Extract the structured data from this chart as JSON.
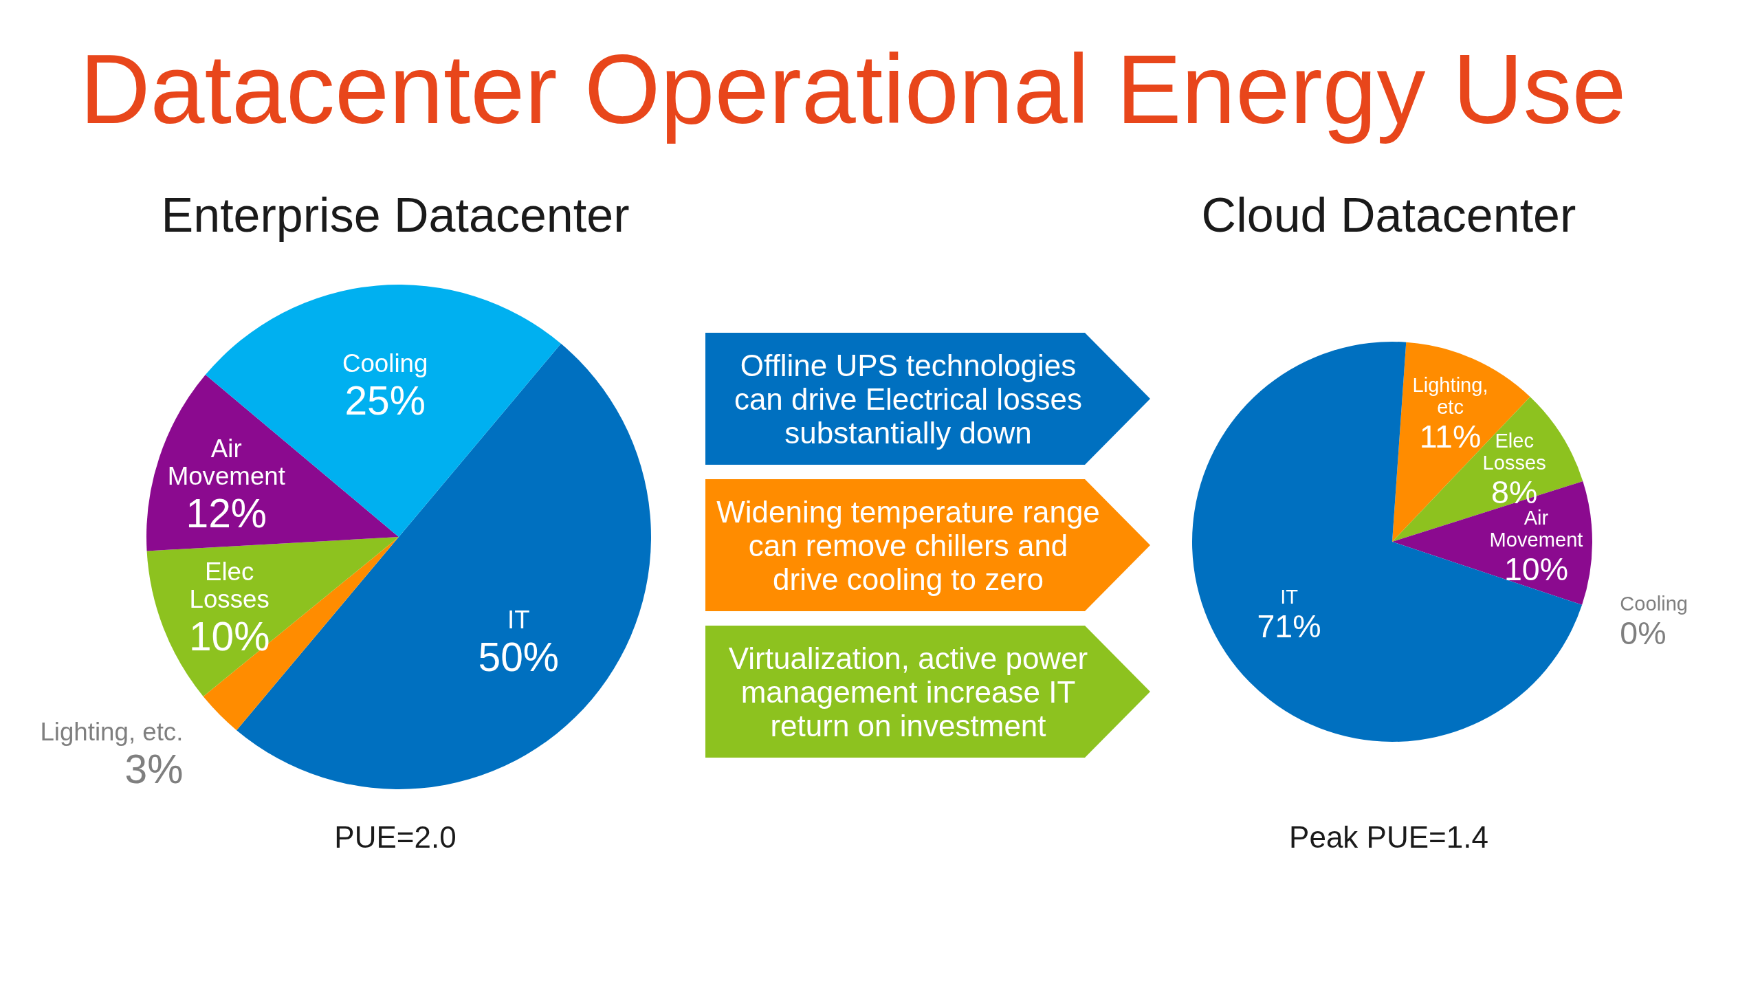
{
  "chart_data": [
    {
      "type": "other",
      "title": "Datacenter Operational Energy Use"
    },
    {
      "type": "pie",
      "title": "Enterprise Datacenter",
      "categories": [
        "IT",
        "Lighting, etc.",
        "Elec Losses",
        "Air Movement",
        "Cooling"
      ],
      "values": [
        50,
        3,
        10,
        12,
        25
      ],
      "value_labels": [
        "50%",
        "3%",
        "10%",
        "12%",
        "25%"
      ],
      "colors": [
        "#0070c0",
        "#ff8c00",
        "#8dc21f",
        "#8b0a8f",
        "#00b0f0"
      ],
      "annotations": [
        "PUE=2.0"
      ]
    },
    {
      "type": "other",
      "annotations": [
        "Offline UPS technologies can drive Electrical losses substantially down",
        "Widening temperature range can remove chillers and drive cooling to zero",
        "Virtualization, active power management increase IT return on investment"
      ]
    },
    {
      "type": "pie",
      "title": "Cloud Datacenter",
      "categories": [
        "Lighting, etc",
        "Elec Losses",
        "Air Movement",
        "Cooling",
        "IT"
      ],
      "values": [
        11,
        8,
        10,
        0,
        71
      ],
      "value_labels": [
        "11%",
        "8%",
        "10%",
        "0%",
        "71%"
      ],
      "colors": [
        "#ff8c00",
        "#8dc21f",
        "#8b0a8f",
        "#00b0f0",
        "#0070c0"
      ],
      "annotations": [
        "Peak PUE=1.4"
      ]
    }
  ]
}
